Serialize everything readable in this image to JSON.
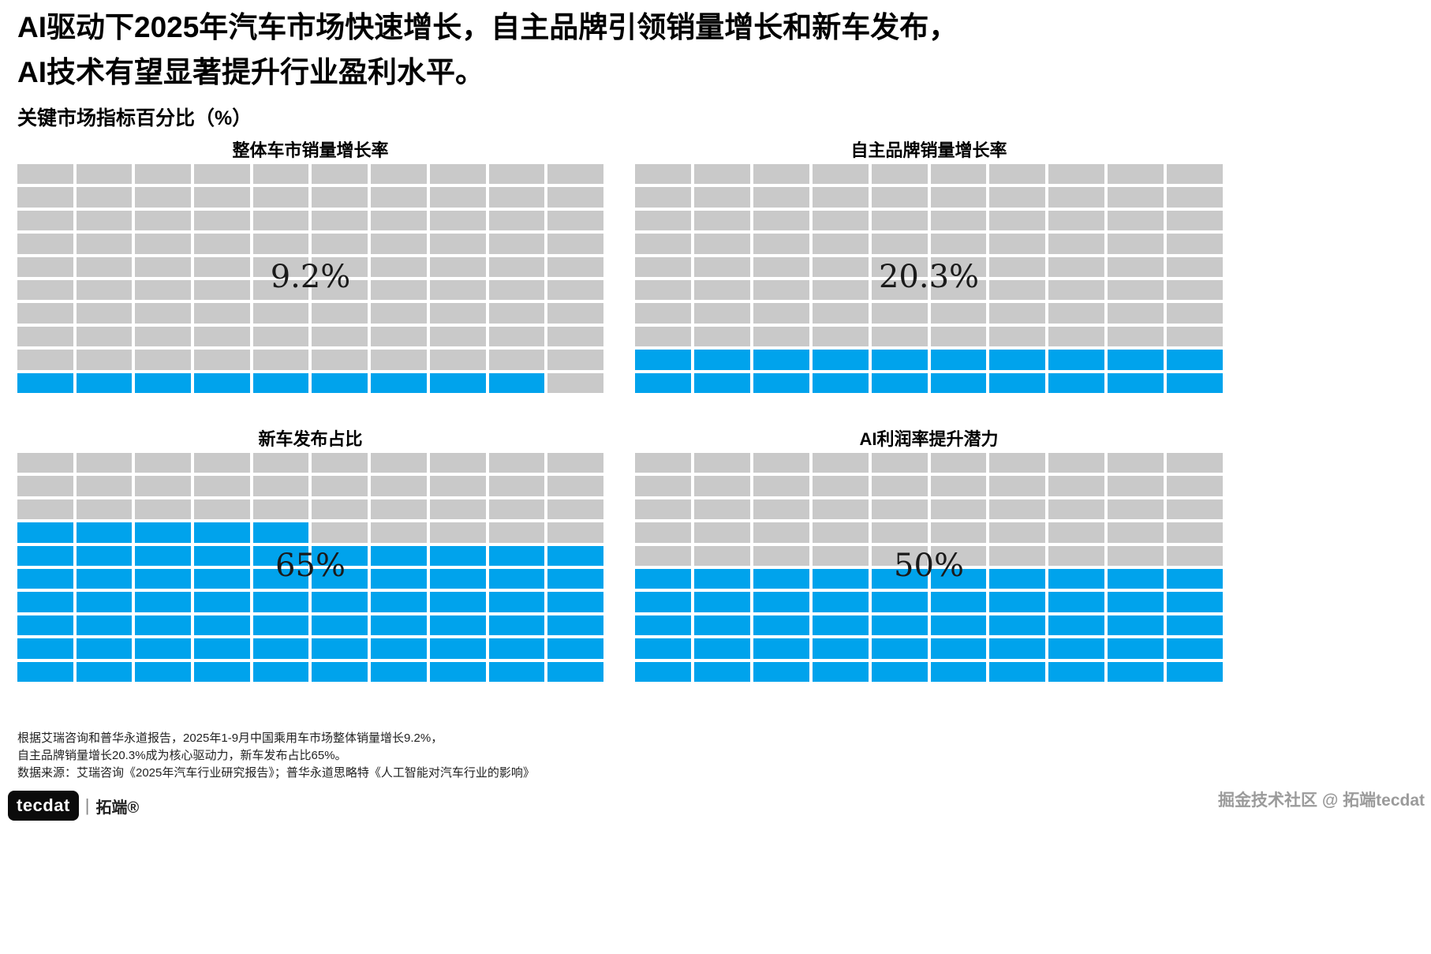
{
  "header": {
    "title_line1": "AI驱动下2025年汽车市场快速增长，自主品牌引领销量增长和新车发布，",
    "title_line2": "AI技术有望显著提升行业盈利水平。",
    "subtitle": "关键市场指标百分比（%）"
  },
  "chart_data": {
    "type": "waffle",
    "title": "关键市场指标百分比（%）",
    "grid": {
      "rows": 10,
      "cols": 10,
      "cell_value_percent": 1
    },
    "colors": {
      "filled": "#00a3ec",
      "empty": "#c9c9c9"
    },
    "panels": [
      {
        "title": "整体车市销量增长率",
        "value": 9.2,
        "label": "9.2%",
        "filled_cells": 9
      },
      {
        "title": "自主品牌销量增长率",
        "value": 20.3,
        "label": "20.3%",
        "filled_cells": 20
      },
      {
        "title": "新车发布占比",
        "value": 65,
        "label": "65%",
        "filled_cells": 65
      },
      {
        "title": "AI利润率提升潜力",
        "value": 50,
        "label": "50%",
        "filled_cells": 50
      }
    ]
  },
  "footer": {
    "line1": "根据艾瑞咨询和普华永道报告，2025年1-9月中国乘用车市场整体销量增长9.2%，",
    "line2": "自主品牌销量增长20.3%成为核心驱动力，新车发布占比65%。",
    "line3": "数据来源：艾瑞咨询《2025年汽车行业研究报告》；普华永道思略特《人工智能对汽车行业的影响》"
  },
  "branding": {
    "logo_text": "tecdat",
    "logo_separator": "|",
    "logo_suffix": "拓端®",
    "watermark": "掘金技术社区 @ 拓端tecdat"
  }
}
